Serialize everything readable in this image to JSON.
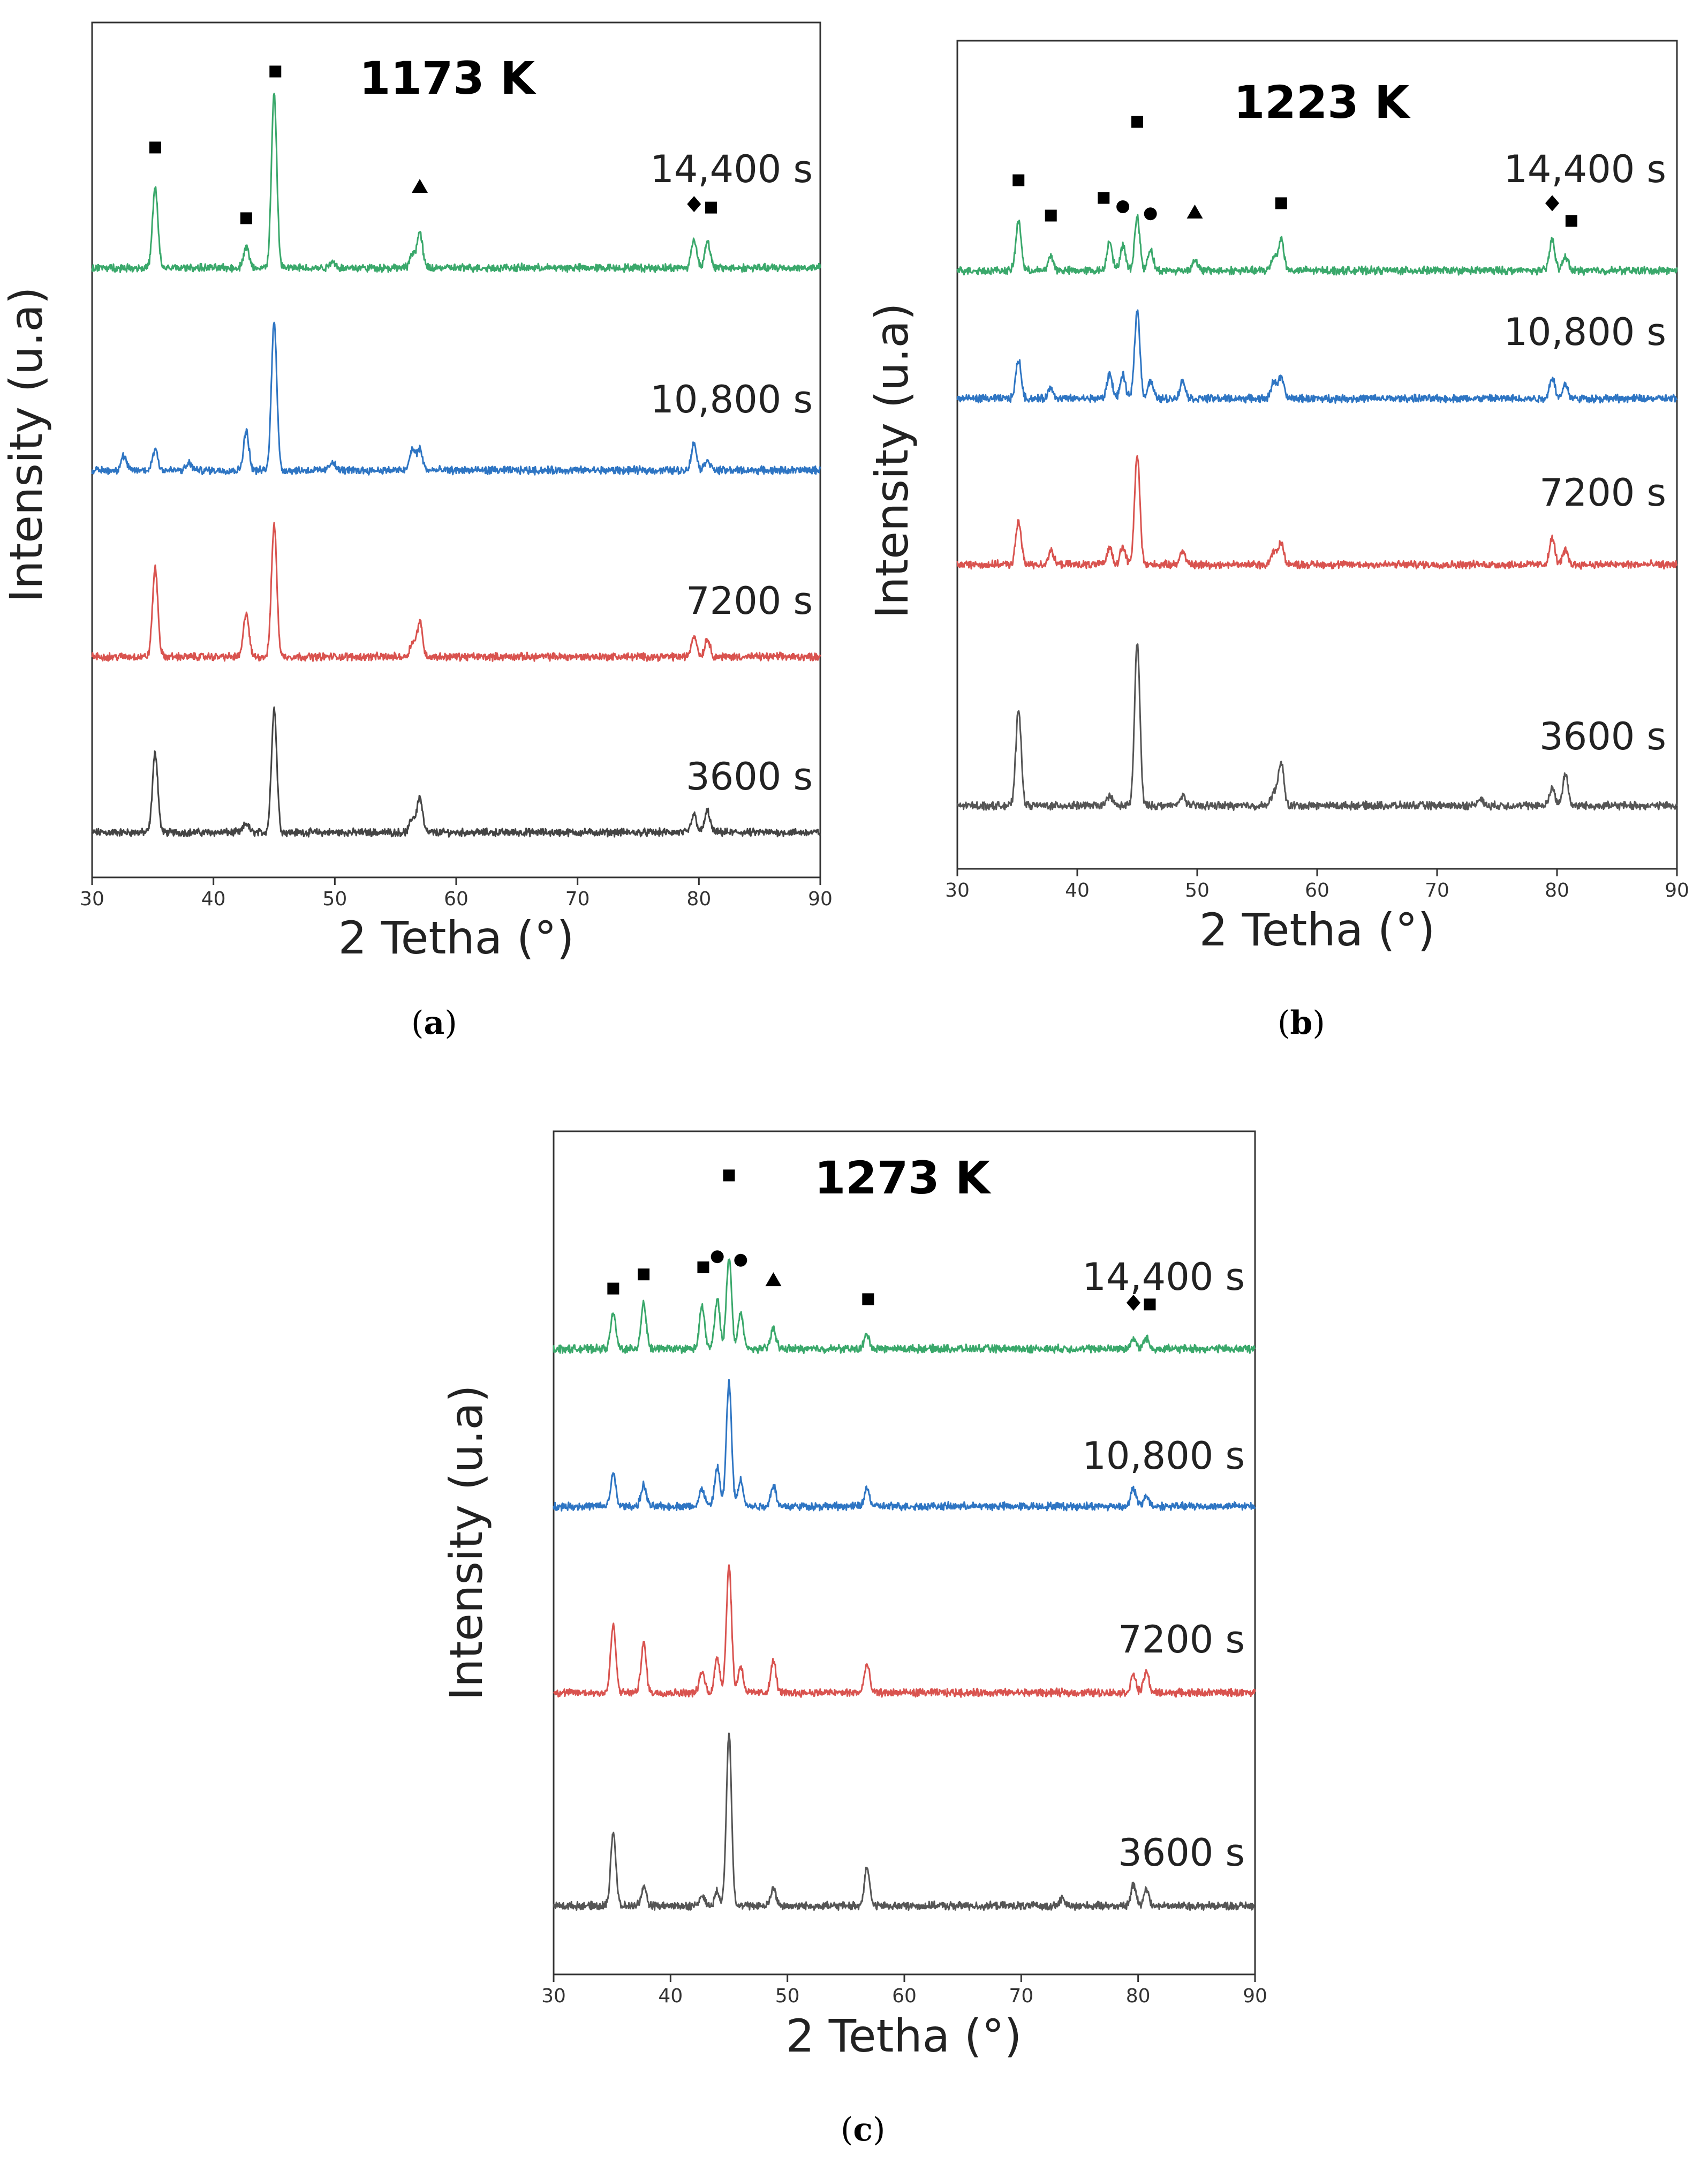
{
  "figure": {
    "charts": [
      {
        "id": "a",
        "caption": "(a)",
        "caption_letter": "a"
      },
      {
        "id": "b",
        "caption": "(b)",
        "caption_letter": "b"
      },
      {
        "id": "c",
        "caption": "(c)",
        "caption_letter": "c"
      }
    ]
  },
  "chart_data": [
    {
      "id": "a",
      "type": "line",
      "title": "1173 K",
      "xlabel": "2 Tetha (°)",
      "ylabel": "Intensity (u.a)",
      "xlim": [
        30,
        90
      ],
      "xticks": [
        30,
        40,
        50,
        60,
        70,
        80,
        90
      ],
      "yaxis": "stacked offsets, arbitrary units, no ticks",
      "series": [
        {
          "name": "3600 s",
          "color": "#444444",
          "offset": 0,
          "peaks": [
            [
              35.2,
              45
            ],
            [
              42.7,
              5
            ],
            [
              45.0,
              70
            ],
            [
              56.4,
              8
            ],
            [
              57.0,
              20
            ],
            [
              79.6,
              10
            ],
            [
              80.7,
              12
            ]
          ]
        },
        {
          "name": "7200 s",
          "color": "#d9534f",
          "offset": 1,
          "peaks": [
            [
              35.2,
              50
            ],
            [
              42.7,
              25
            ],
            [
              45.0,
              75
            ],
            [
              56.4,
              8
            ],
            [
              57.0,
              20
            ],
            [
              79.6,
              12
            ],
            [
              80.7,
              10
            ]
          ]
        },
        {
          "name": "10,800 s",
          "color": "#2e75c3",
          "offset": 2,
          "peaks": [
            [
              32.6,
              8
            ],
            [
              35.2,
              12
            ],
            [
              38.0,
              4
            ],
            [
              42.7,
              22
            ],
            [
              45.0,
              85
            ],
            [
              49.8,
              5
            ],
            [
              56.4,
              12
            ],
            [
              57.0,
              12
            ],
            [
              79.6,
              15
            ],
            [
              80.7,
              6
            ]
          ]
        },
        {
          "name": "14,400 s",
          "color": "#3aa86b",
          "offset": 3,
          "peaks": [
            [
              35.2,
              45
            ],
            [
              42.7,
              12
            ],
            [
              45.0,
              98
            ],
            [
              49.8,
              4
            ],
            [
              56.4,
              8
            ],
            [
              57.0,
              20
            ],
            [
              79.6,
              16
            ],
            [
              80.7,
              15
            ]
          ]
        }
      ],
      "markers": [
        {
          "symbol": "square",
          "x": 35.2,
          "series": "14,400 s",
          "height": 62
        },
        {
          "symbol": "square",
          "x": 42.7,
          "series": "14,400 s",
          "height": 22
        },
        {
          "symbol": "square",
          "x": 45.1,
          "series": "14,400 s",
          "height": 105
        },
        {
          "symbol": "triangle",
          "x": 57.0,
          "series": "14,400 s",
          "height": 40
        },
        {
          "symbol": "diamond",
          "x": 79.6,
          "series": "14,400 s",
          "height": 30
        },
        {
          "symbol": "square",
          "x": 81.0,
          "series": "14,400 s",
          "height": 28
        }
      ]
    },
    {
      "id": "b",
      "type": "line",
      "title": "1223 K",
      "xlabel": "2 Tetha (°)",
      "ylabel": "Intensity (u.a)",
      "xlim": [
        30,
        90
      ],
      "xticks": [
        30,
        40,
        50,
        60,
        70,
        80,
        90
      ],
      "yaxis": "stacked offsets, arbitrary units, no ticks",
      "series": [
        {
          "name": "3600 s",
          "color": "#555555",
          "offset": 0,
          "peaks": [
            [
              35.1,
              55
            ],
            [
              42.7,
              6
            ],
            [
              45.0,
              92
            ],
            [
              48.8,
              6
            ],
            [
              56.4,
              8
            ],
            [
              57.0,
              25
            ],
            [
              73.6,
              4
            ],
            [
              79.6,
              10
            ],
            [
              80.7,
              18
            ]
          ]
        },
        {
          "name": "7200 s",
          "color": "#d9534f",
          "offset": 1,
          "peaks": [
            [
              35.1,
              25
            ],
            [
              37.8,
              8
            ],
            [
              42.7,
              10
            ],
            [
              43.8,
              10
            ],
            [
              45.0,
              62
            ],
            [
              48.8,
              8
            ],
            [
              56.4,
              8
            ],
            [
              57.0,
              12
            ],
            [
              79.6,
              15
            ],
            [
              80.7,
              8
            ]
          ]
        },
        {
          "name": "10,800 s",
          "color": "#2e75c3",
          "offset": 2,
          "peaks": [
            [
              35.1,
              22
            ],
            [
              37.8,
              6
            ],
            [
              42.7,
              14
            ],
            [
              43.8,
              13
            ],
            [
              45.0,
              50
            ],
            [
              46.1,
              10
            ],
            [
              48.8,
              10
            ],
            [
              56.4,
              10
            ],
            [
              57.0,
              12
            ],
            [
              79.6,
              12
            ],
            [
              80.7,
              8
            ]
          ]
        },
        {
          "name": "14,400 s",
          "color": "#3aa86b",
          "offset": 3,
          "peaks": [
            [
              35.1,
              28
            ],
            [
              37.8,
              8
            ],
            [
              42.7,
              17
            ],
            [
              43.8,
              14
            ],
            [
              45.0,
              30
            ],
            [
              46.1,
              12
            ],
            [
              49.8,
              6
            ],
            [
              56.4,
              8
            ],
            [
              57.0,
              18
            ],
            [
              79.6,
              18
            ],
            [
              80.7,
              8
            ]
          ]
        }
      ],
      "markers": [
        {
          "symbol": "square",
          "x": 35.1,
          "series": "14,400 s",
          "height": 45
        },
        {
          "symbol": "square",
          "x": 37.8,
          "series": "14,400 s",
          "height": 25
        },
        {
          "symbol": "square",
          "x": 42.2,
          "series": "14,400 s",
          "height": 35
        },
        {
          "symbol": "circle",
          "x": 43.8,
          "series": "14,400 s",
          "height": 30
        },
        {
          "symbol": "square",
          "x": 45.0,
          "series": "14,400 s",
          "height": 78
        },
        {
          "symbol": "circle",
          "x": 46.1,
          "series": "14,400 s",
          "height": 26
        },
        {
          "symbol": "triangle",
          "x": 49.8,
          "series": "14,400 s",
          "height": 27
        },
        {
          "symbol": "square",
          "x": 57.0,
          "series": "14,400 s",
          "height": 32
        },
        {
          "symbol": "diamond",
          "x": 79.6,
          "series": "14,400 s",
          "height": 32
        },
        {
          "symbol": "square",
          "x": 81.2,
          "series": "14,400 s",
          "height": 22
        }
      ]
    },
    {
      "id": "c",
      "type": "line",
      "title": "1273 K",
      "xlabel": "2 Tetha (°)",
      "ylabel": "Intensity (u.a)",
      "xlim": [
        30,
        90
      ],
      "xticks": [
        30,
        40,
        50,
        60,
        70,
        80,
        90
      ],
      "yaxis": "stacked offsets, arbitrary units, no ticks",
      "series": [
        {
          "name": "3600 s",
          "color": "#555555",
          "offset": 0,
          "peaks": [
            [
              35.1,
              42
            ],
            [
              37.7,
              10
            ],
            [
              42.7,
              6
            ],
            [
              44.0,
              8
            ],
            [
              45.0,
              98
            ],
            [
              48.8,
              10
            ],
            [
              56.8,
              22
            ],
            [
              73.5,
              4
            ],
            [
              79.6,
              12
            ],
            [
              80.7,
              10
            ]
          ]
        },
        {
          "name": "7200 s",
          "color": "#d9534f",
          "offset": 1,
          "peaks": [
            [
              35.1,
              38
            ],
            [
              37.7,
              28
            ],
            [
              42.7,
              12
            ],
            [
              44.0,
              20
            ],
            [
              45.0,
              72
            ],
            [
              46.0,
              15
            ],
            [
              48.8,
              18
            ],
            [
              56.8,
              16
            ],
            [
              79.6,
              10
            ],
            [
              80.7,
              12
            ]
          ]
        },
        {
          "name": "10,800 s",
          "color": "#2e75c3",
          "offset": 2,
          "peaks": [
            [
              35.1,
              18
            ],
            [
              37.7,
              12
            ],
            [
              42.7,
              10
            ],
            [
              44.0,
              22
            ],
            [
              45.0,
              70
            ],
            [
              46.0,
              15
            ],
            [
              48.8,
              12
            ],
            [
              56.8,
              10
            ],
            [
              79.6,
              10
            ],
            [
              80.7,
              6
            ]
          ]
        },
        {
          "name": "14,400 s",
          "color": "#3aa86b",
          "offset": 3,
          "peaks": [
            [
              35.1,
              20
            ],
            [
              37.7,
              26
            ],
            [
              42.7,
              24
            ],
            [
              44.0,
              28
            ],
            [
              45.0,
              52
            ],
            [
              46.0,
              20
            ],
            [
              48.8,
              12
            ],
            [
              56.8,
              8
            ],
            [
              79.6,
              6
            ],
            [
              80.7,
              6
            ]
          ]
        }
      ],
      "markers": [
        {
          "symbol": "square",
          "x": 35.1,
          "series": "14,400 s",
          "height": 28
        },
        {
          "symbol": "square",
          "x": 37.7,
          "series": "14,400 s",
          "height": 36
        },
        {
          "symbol": "square",
          "x": 42.8,
          "series": "14,400 s",
          "height": 40
        },
        {
          "symbol": "circle",
          "x": 44.0,
          "series": "14,400 s",
          "height": 46
        },
        {
          "symbol": "square",
          "x": 45.0,
          "series": "14,400 s",
          "height": 92
        },
        {
          "symbol": "circle",
          "x": 46.0,
          "series": "14,400 s",
          "height": 44
        },
        {
          "symbol": "triangle",
          "x": 48.8,
          "series": "14,400 s",
          "height": 33
        },
        {
          "symbol": "square",
          "x": 56.9,
          "series": "14,400 s",
          "height": 22
        },
        {
          "symbol": "diamond",
          "x": 79.6,
          "series": "14,400 s",
          "height": 20
        },
        {
          "symbol": "square",
          "x": 81.0,
          "series": "14,400 s",
          "height": 19
        }
      ]
    }
  ]
}
